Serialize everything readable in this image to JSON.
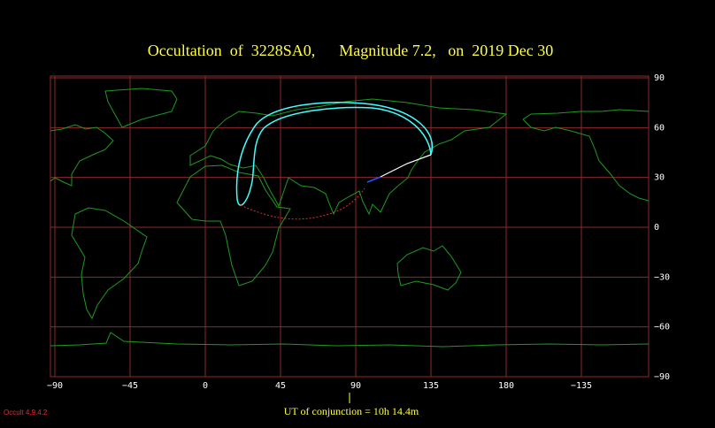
{
  "header": {
    "title": "Occultation  of  3228SA0,      Magnitude 7.2,   on  2019 Dec 30"
  },
  "map": {
    "xticks": [
      {
        "value": -90,
        "label": "−90"
      },
      {
        "value": -45,
        "label": "−45"
      },
      0,
      45,
      90,
      135,
      180,
      {
        "value": -135,
        "label": "−135"
      }
    ],
    "yticks": [
      90,
      60,
      30,
      0,
      {
        "value": -30,
        "label": "−30"
      },
      {
        "value": -60,
        "label": "−60"
      },
      {
        "value": -90,
        "label": "−90"
      }
    ]
  },
  "footer": {
    "conjunction": "UT of conjunction = 10h 14.4m",
    "version": "Occult 4.9.4.2"
  }
}
